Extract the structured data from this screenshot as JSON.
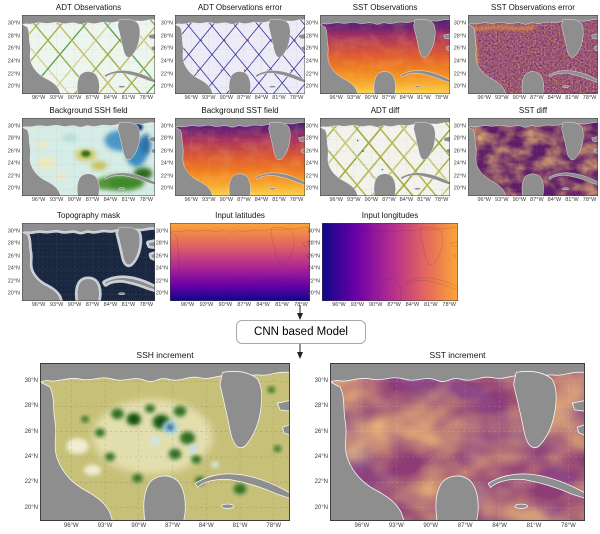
{
  "model": {
    "label": "CNN based Model"
  },
  "axis": {
    "lat_ticks": [
      "30°N",
      "28°N",
      "26°N",
      "24°N",
      "22°N",
      "20°N"
    ],
    "lon_ticks": [
      "96°W",
      "93°W",
      "90°W",
      "87°W",
      "84°W",
      "81°W",
      "78°W"
    ]
  },
  "panels": {
    "adt_obs": {
      "title": "ADT Observations"
    },
    "adt_err": {
      "title": "ADT Observations error"
    },
    "sst_obs": {
      "title": "SST Observations"
    },
    "sst_err": {
      "title": "SST Observations error"
    },
    "bg_ssh": {
      "title": "Background SSH field"
    },
    "bg_sst": {
      "title": "Background SST field"
    },
    "adt_diff": {
      "title": "ADT diff"
    },
    "sst_diff": {
      "title": "SST diff"
    },
    "topo": {
      "title": "Topography mask"
    },
    "lat_in": {
      "title": "Input latitudes"
    },
    "lon_in": {
      "title": "Input longitudes"
    },
    "ssh_inc": {
      "title": "SSH increment"
    },
    "sst_inc": {
      "title": "SST increment"
    }
  },
  "colors": {
    "land": "#8e8e8e",
    "coastline": "#f7f7f7",
    "panel_frame": "#3c3c3c",
    "adt_ocean": "#edf6ee",
    "adt_err_ocean": "#edecf6",
    "adt_diff_ocean": "#f2f3ec",
    "adt_tracks": [
      "#c3b959",
      "#a4ab4a",
      "#5ba14f",
      "#d6d094",
      "#93ad41"
    ],
    "adt_err_track": "#2e2f9d",
    "adt_err_dot": "#d03a2a",
    "adt_diff_tracks": [
      "#b6b752",
      "#c8c87e",
      "#a3a83e"
    ],
    "sst_gradient": [
      "#1c0e45",
      "#571c7a",
      "#a8325f",
      "#dd5a32",
      "#ef7e21",
      "#f7a62d",
      "#fbd34f"
    ],
    "sst_err_base": "#6f2574",
    "sst_diff_base": "#5d1d68",
    "sst_inc_base": "#8e3c76",
    "swirl_orange": "#f29a2e",
    "topo_deep": "#1a2740",
    "topo_shelf": "#c7cdd8",
    "ssh_bg_base": "#d6ece6",
    "ssh_inc_base": "#c6c078",
    "plasma": [
      "#0d0887",
      "#6a00a8",
      "#b12a90",
      "#e16462",
      "#fca636"
    ],
    "grid_light": "rgba(255,255,255,0.22)",
    "grid_dark": "rgba(110,110,110,0.38)"
  }
}
